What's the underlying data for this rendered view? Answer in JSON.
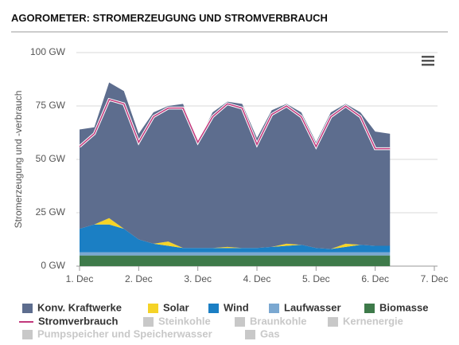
{
  "chart_data": {
    "type": "stacked_area",
    "title": "AGOROMETER: STROMERZEUGUNG UND STROMVERBRAUCH",
    "y_label": "Stromerzeugung und -verbrauch",
    "x": [
      1,
      1.25,
      1.5,
      1.75,
      2,
      2.25,
      2.5,
      2.75,
      3,
      3.25,
      3.5,
      3.75,
      4,
      4.25,
      4.5,
      4.75,
      5,
      5.25,
      5.5,
      5.75,
      6,
      6.25
    ],
    "xlim": [
      1,
      7
    ],
    "xticks": [
      {
        "value": 1,
        "label": "1. Dec"
      },
      {
        "value": 2,
        "label": "2. Dec"
      },
      {
        "value": 3,
        "label": "3. Dec"
      },
      {
        "value": 4,
        "label": "4. Dec"
      },
      {
        "value": 5,
        "label": "5. Dec"
      },
      {
        "value": 6,
        "label": "6. Dec"
      },
      {
        "value": 7,
        "label": "7. Dec"
      }
    ],
    "ylim": [
      0,
      100
    ],
    "yticks": [
      {
        "value": 0,
        "label": "0 GW"
      },
      {
        "value": 25,
        "label": "25 GW"
      },
      {
        "value": 50,
        "label": "50 GW"
      },
      {
        "value": 75,
        "label": "75 GW"
      },
      {
        "value": 100,
        "label": "100 GW"
      }
    ],
    "grid": true,
    "series": [
      {
        "name": "Konv. Kraftwerke",
        "color": "#5d6d8e",
        "kind": "area",
        "values": [
          46.5,
          45.5,
          63.5,
          64.5,
          49.5,
          61.5,
          63.5,
          67.5,
          49.5,
          63.5,
          68,
          67.5,
          51.5,
          64,
          65.5,
          62,
          49.5,
          64,
          65.5,
          62,
          53.5,
          52.5
        ]
      },
      {
        "name": "Solar",
        "color": "#f5d327",
        "kind": "area",
        "values": [
          0,
          0,
          3,
          0,
          0,
          0,
          2,
          0,
          0,
          0,
          0.5,
          0,
          0,
          0,
          1,
          0,
          0,
          0,
          1.5,
          0,
          0,
          0
        ]
      },
      {
        "name": "Wind",
        "color": "#1b7fc4",
        "kind": "area",
        "values": [
          11,
          13,
          13,
          11,
          6,
          4,
          3,
          2,
          2,
          2,
          2,
          2,
          2,
          2.5,
          3,
          3.5,
          2,
          1.5,
          2.5,
          3.5,
          3,
          3
        ]
      },
      {
        "name": "Laufwasser",
        "color": "#7ba8d1",
        "kind": "area",
        "values": [
          1.5,
          1.5,
          1.5,
          1.5,
          1.5,
          1.5,
          1.5,
          1.5,
          1.5,
          1.5,
          1.5,
          1.5,
          1.5,
          1.5,
          1.5,
          1.5,
          1.5,
          1.5,
          1.5,
          1.5,
          1.5,
          1.5
        ]
      },
      {
        "name": "Biomasse",
        "color": "#3e7a4a",
        "kind": "area",
        "values": [
          5,
          5,
          5,
          5,
          5,
          5,
          5,
          5,
          5,
          5,
          5,
          5,
          5,
          5,
          5,
          5,
          5,
          5,
          5,
          5,
          5,
          5
        ]
      },
      {
        "name": "Stromverbrauch",
        "color": "#c2387c",
        "kind": "line",
        "values": [
          56,
          62,
          78,
          76,
          58,
          70,
          74,
          74,
          58,
          70,
          76,
          74,
          57,
          71,
          75,
          70,
          56,
          70,
          75,
          70,
          55,
          55
        ]
      }
    ],
    "hidden_series": [
      "Steinkohle",
      "Braunkohle",
      "Kernenergie",
      "Pumpspeicher und Speicherwasser",
      "Gas"
    ],
    "hidden_color": "#c8c8c8"
  }
}
